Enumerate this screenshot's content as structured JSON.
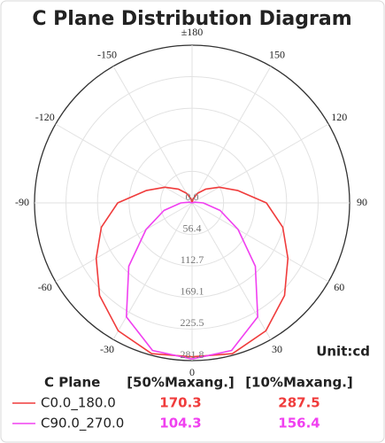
{
  "chart_data": {
    "type": "polar",
    "title": "C Plane Distribution Diagram",
    "unit_label": "Unit:cd",
    "x": [
      -180,
      -165,
      -150,
      -135,
      -120,
      -105,
      -90,
      -75,
      -60,
      -45,
      -30,
      -15,
      0,
      15,
      30,
      45,
      60,
      75,
      90,
      105,
      120,
      135,
      150,
      165,
      180
    ],
    "series": [
      {
        "name": "C0.0_180.0",
        "color": "#f03c3c",
        "values": [
          0,
          8,
          20,
          35,
          56,
          85,
          133,
          168,
          198,
          234,
          264,
          279,
          275,
          279,
          264,
          234,
          198,
          168,
          133,
          85,
          56,
          35,
          20,
          8,
          0
        ],
        "summary": [
          170.3,
          287.5
        ]
      },
      {
        "name": "C90.0_270.0",
        "color": "#f040f0",
        "values": [
          0,
          0,
          0,
          0,
          0,
          5,
          20,
          52,
          95,
          160,
          235,
          273,
          279,
          273,
          235,
          160,
          95,
          52,
          20,
          5,
          0,
          0,
          0,
          0,
          0
        ],
        "summary": [
          104.3,
          156.4
        ]
      }
    ],
    "summary_headers": [
      "C Plane",
      "[50%Maxang.]",
      "[10%Maxang.]"
    ],
    "rlim": [
      0,
      281.8
    ],
    "rticks": [
      {
        "value": 0,
        "label": "0.0"
      },
      56.4,
      112.7,
      169.1,
      225.5,
      281.8
    ],
    "thetaticks": [
      {
        "value": 180,
        "label": "±180"
      },
      -150,
      -120,
      -90,
      -60,
      -30,
      0,
      30,
      60,
      90,
      120,
      150
    ],
    "grid": true
  }
}
